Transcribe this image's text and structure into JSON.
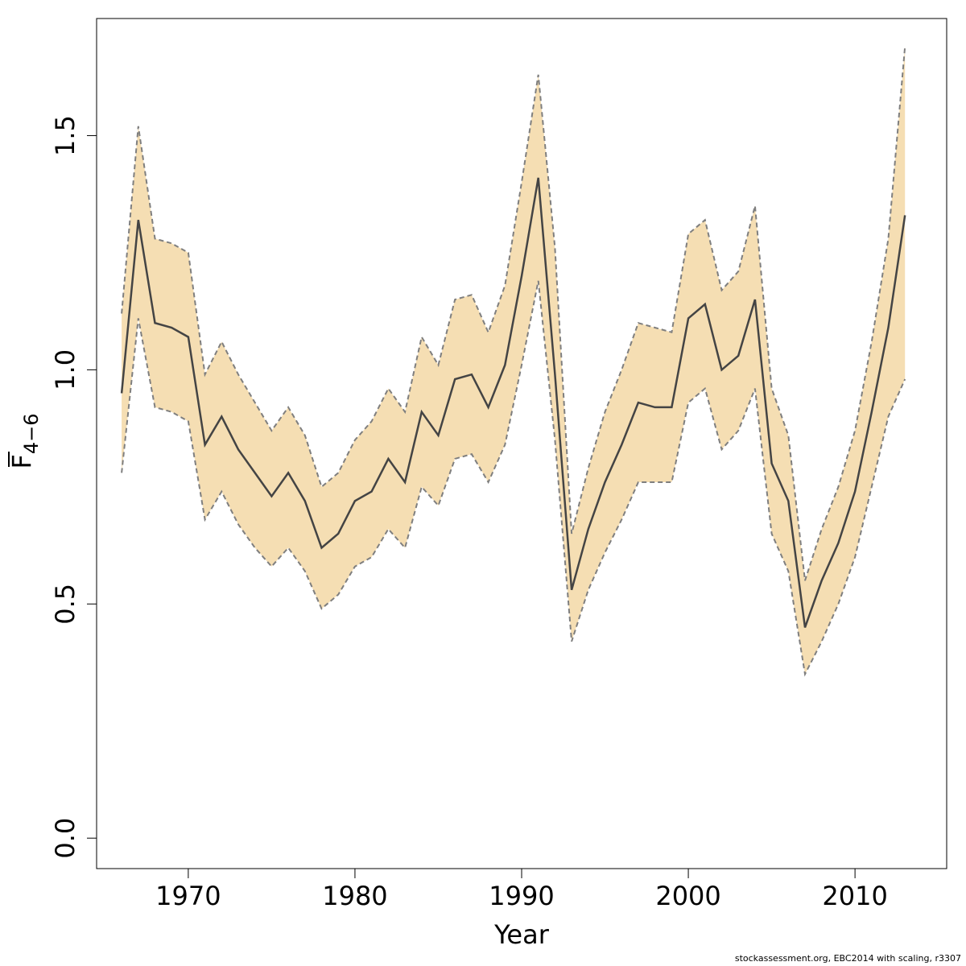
{
  "chart_data": {
    "type": "line",
    "xlabel": "Year",
    "ylabel": {
      "main": "F",
      "subscript": "4−6",
      "overline": true
    },
    "xlim": [
      1964.5,
      2015.5
    ],
    "ylim": [
      -0.065,
      1.75
    ],
    "xticks": [
      1970,
      1980,
      1990,
      2000,
      2010
    ],
    "yticks": [
      0.0,
      0.5,
      1.0,
      1.5
    ],
    "ytick_labels": [
      "0.0",
      "0.5",
      "1.0",
      "1.5"
    ],
    "grid": false,
    "legend": null,
    "colors": {
      "band": "#f5deb3",
      "bound_line": "#7f7f7f",
      "estimate_line": "#444444",
      "axis": "#000000"
    },
    "x": [
      1966,
      1967,
      1968,
      1969,
      1970,
      1971,
      1972,
      1973,
      1974,
      1975,
      1976,
      1977,
      1978,
      1979,
      1980,
      1981,
      1982,
      1983,
      1984,
      1985,
      1986,
      1987,
      1988,
      1989,
      1990,
      1991,
      1992,
      1993,
      1994,
      1995,
      1996,
      1997,
      1998,
      1999,
      2000,
      2001,
      2002,
      2003,
      2004,
      2005,
      2006,
      2007,
      2008,
      2009,
      2010,
      2011,
      2012,
      2013
    ],
    "series": [
      {
        "role": "estimate",
        "values": [
          0.95,
          1.32,
          1.1,
          1.09,
          1.07,
          0.84,
          0.9,
          0.83,
          0.78,
          0.73,
          0.78,
          0.72,
          0.62,
          0.65,
          0.72,
          0.74,
          0.81,
          0.76,
          0.91,
          0.86,
          0.98,
          0.99,
          0.92,
          1.01,
          1.2,
          1.41,
          0.99,
          0.53,
          0.66,
          0.76,
          0.84,
          0.93,
          0.92,
          0.92,
          1.11,
          1.14,
          1.0,
          1.03,
          1.15,
          0.8,
          0.72,
          0.45,
          0.55,
          0.63,
          0.74,
          0.91,
          1.09,
          1.33
        ]
      },
      {
        "role": "upper",
        "values": [
          1.12,
          1.52,
          1.28,
          1.27,
          1.25,
          0.99,
          1.06,
          0.99,
          0.93,
          0.87,
          0.92,
          0.86,
          0.75,
          0.78,
          0.85,
          0.89,
          0.96,
          0.91,
          1.07,
          1.01,
          1.15,
          1.16,
          1.08,
          1.18,
          1.4,
          1.63,
          1.26,
          0.65,
          0.79,
          0.91,
          1.0,
          1.1,
          1.09,
          1.08,
          1.29,
          1.32,
          1.17,
          1.21,
          1.35,
          0.96,
          0.86,
          0.55,
          0.66,
          0.75,
          0.87,
          1.06,
          1.28,
          1.69
        ]
      },
      {
        "role": "lower",
        "values": [
          0.78,
          1.11,
          0.92,
          0.91,
          0.89,
          0.68,
          0.74,
          0.67,
          0.62,
          0.58,
          0.62,
          0.57,
          0.49,
          0.52,
          0.58,
          0.6,
          0.66,
          0.62,
          0.75,
          0.71,
          0.81,
          0.82,
          0.76,
          0.84,
          1.01,
          1.19,
          0.85,
          0.42,
          0.53,
          0.61,
          0.68,
          0.76,
          0.76,
          0.76,
          0.93,
          0.96,
          0.83,
          0.87,
          0.96,
          0.65,
          0.57,
          0.35,
          0.42,
          0.5,
          0.6,
          0.75,
          0.9,
          0.98
        ]
      }
    ]
  },
  "footer": "stockassessment.org, EBC2014  with  scaling, r3307"
}
